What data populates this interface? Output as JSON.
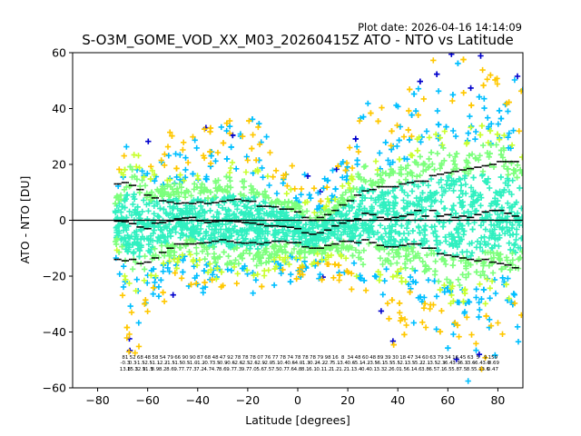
{
  "chart_data": {
    "type": "scatter",
    "title": "S-O3M_GOME_VOD_XX_M03_20260415Z ATO - NTO vs Latitude",
    "subtitle": "Plot date: 2026-04-16 14:14:09",
    "xlabel": "Latitude [degrees]",
    "ylabel": "ATO - NTO [DU]",
    "xlim": [
      -90,
      90
    ],
    "ylim": [
      -60,
      60
    ],
    "xticks": [
      -80,
      -60,
      -40,
      -20,
      0,
      20,
      40,
      60,
      80
    ],
    "yticks": [
      -60,
      -40,
      -20,
      0,
      20,
      40,
      60
    ],
    "xtick_labels": [
      "−80",
      "−60",
      "−40",
      "−20",
      "0",
      "20",
      "40",
      "60",
      "80"
    ],
    "ytick_labels": [
      "−60",
      "−40",
      "−20",
      "0",
      "20",
      "40",
      "60"
    ],
    "grid": false,
    "marker": "+",
    "density_colors": [
      "#0000cc",
      "#00bfff",
      "#30f0c0",
      "#7cff7c",
      "#c8ff30",
      "#ffc800"
    ],
    "zero_line": 0,
    "bins": [
      {
        "lat": -72,
        "mean": -0.3,
        "upper": 13.0,
        "lower": -14.0
      },
      {
        "lat": -69,
        "mean": -0.5,
        "upper": 13.5,
        "lower": -14.5
      },
      {
        "lat": -66,
        "mean": -1.2,
        "upper": 12.5,
        "lower": -14.0
      },
      {
        "lat": -63,
        "mean": -2.4,
        "upper": 11.0,
        "lower": -15.5
      },
      {
        "lat": -60,
        "mean": -3.0,
        "upper": 9.0,
        "lower": -15.0
      },
      {
        "lat": -57,
        "mean": -1.0,
        "upper": 8.0,
        "lower": -13.5
      },
      {
        "lat": -54,
        "mean": -0.8,
        "upper": 7.0,
        "lower": -11.5
      },
      {
        "lat": -51,
        "mean": -0.3,
        "upper": 6.5,
        "lower": -10.0
      },
      {
        "lat": -48,
        "mean": 0.5,
        "upper": 6.0,
        "lower": -8.5
      },
      {
        "lat": -45,
        "mean": 0.8,
        "upper": 6.2,
        "lower": -8.5
      },
      {
        "lat": -42,
        "mean": 1.0,
        "upper": 6.0,
        "lower": -8.5
      },
      {
        "lat": -39,
        "mean": -0.2,
        "upper": 6.5,
        "lower": -8.2
      },
      {
        "lat": -36,
        "mean": -0.8,
        "upper": 6.0,
        "lower": -8.0
      },
      {
        "lat": -33,
        "mean": -0.5,
        "upper": 6.3,
        "lower": -7.5
      },
      {
        "lat": -30,
        "mean": -0.2,
        "upper": 6.8,
        "lower": -7.0
      },
      {
        "lat": -27,
        "mean": -0.3,
        "upper": 7.2,
        "lower": -7.5
      },
      {
        "lat": -24,
        "mean": -0.5,
        "upper": 7.5,
        "lower": -8.0
      },
      {
        "lat": -21,
        "mean": -0.8,
        "upper": 7.0,
        "lower": -8.2
      },
      {
        "lat": -18,
        "mean": -1.0,
        "upper": 6.8,
        "lower": -8.0
      },
      {
        "lat": -15,
        "mean": -1.5,
        "upper": 5.0,
        "lower": -8.5
      },
      {
        "lat": -12,
        "mean": -2.0,
        "upper": 5.0,
        "lower": -8.0
      },
      {
        "lat": -9,
        "mean": -2.0,
        "upper": 4.8,
        "lower": -7.5
      },
      {
        "lat": -6,
        "mean": -2.2,
        "upper": 4.0,
        "lower": -7.5
      },
      {
        "lat": -3,
        "mean": -2.5,
        "upper": 4.0,
        "lower": -8.0
      },
      {
        "lat": 0,
        "mean": -3.0,
        "upper": 3.0,
        "lower": -8.0
      },
      {
        "lat": 3,
        "mean": -4.5,
        "upper": 1.0,
        "lower": -9.5
      },
      {
        "lat": 6,
        "mean": -5.0,
        "upper": 0.0,
        "lower": -10.0
      },
      {
        "lat": 9,
        "mean": -4.5,
        "upper": 1.0,
        "lower": -10.0
      },
      {
        "lat": 12,
        "mean": -3.5,
        "upper": 2.0,
        "lower": -9.0
      },
      {
        "lat": 15,
        "mean": -2.0,
        "upper": 3.5,
        "lower": -8.5
      },
      {
        "lat": 18,
        "mean": -1.0,
        "upper": 5.5,
        "lower": -7.5
      },
      {
        "lat": 21,
        "mean": -0.2,
        "upper": 7.0,
        "lower": -7.5
      },
      {
        "lat": 24,
        "mean": 0.5,
        "upper": 9.0,
        "lower": -8.0
      },
      {
        "lat": 27,
        "mean": 2.5,
        "upper": 10.5,
        "lower": -7.0
      },
      {
        "lat": 30,
        "mean": 2.0,
        "upper": 11.0,
        "lower": -8.0
      },
      {
        "lat": 33,
        "mean": 1.0,
        "upper": 12.0,
        "lower": -9.0
      },
      {
        "lat": 36,
        "mean": 0.5,
        "upper": 12.0,
        "lower": -9.5
      },
      {
        "lat": 39,
        "mean": 1.0,
        "upper": 12.0,
        "lower": -9.5
      },
      {
        "lat": 42,
        "mean": 1.5,
        "upper": 13.0,
        "lower": -9.0
      },
      {
        "lat": 45,
        "mean": 2.0,
        "upper": 13.5,
        "lower": -8.5
      },
      {
        "lat": 48,
        "mean": 3.5,
        "upper": 14.0,
        "lower": -8.5
      },
      {
        "lat": 51,
        "mean": 1.5,
        "upper": 14.0,
        "lower": -10.0
      },
      {
        "lat": 54,
        "mean": 3.5,
        "upper": 16.0,
        "lower": -10.0
      },
      {
        "lat": 57,
        "mean": 1.5,
        "upper": 16.5,
        "lower": -12.0
      },
      {
        "lat": 60,
        "mean": 2.0,
        "upper": 17.0,
        "lower": -12.5
      },
      {
        "lat": 63,
        "mean": 1.0,
        "upper": 17.5,
        "lower": -13.0
      },
      {
        "lat": 66,
        "mean": 1.5,
        "upper": 18.0,
        "lower": -13.5
      },
      {
        "lat": 69,
        "mean": 1.0,
        "upper": 18.5,
        "lower": -14.0
      },
      {
        "lat": 72,
        "mean": 2.0,
        "upper": 19.0,
        "lower": -14.5
      },
      {
        "lat": 75,
        "mean": 3.0,
        "upper": 19.5,
        "lower": -14.0
      },
      {
        "lat": 78,
        "mean": 3.5,
        "upper": 20.0,
        "lower": -15.0
      },
      {
        "lat": 81,
        "mean": 3.5,
        "upper": 21.0,
        "lower": -15.5
      },
      {
        "lat": 84,
        "mean": 2.5,
        "upper": 21.0,
        "lower": -16.0
      },
      {
        "lat": 87,
        "mean": 1.5,
        "upper": 21.0,
        "lower": -17.0
      }
    ],
    "envelope": [
      {
        "lat": -72,
        "hi": 18,
        "lo": -25
      },
      {
        "lat": -67,
        "hi": 32,
        "lo": -50
      },
      {
        "lat": -62,
        "hi": 28,
        "lo": -45
      },
      {
        "lat": -57,
        "hi": 30,
        "lo": -35
      },
      {
        "lat": -52,
        "hi": 32,
        "lo": -30
      },
      {
        "lat": -46,
        "hi": 30,
        "lo": -25
      },
      {
        "lat": -40,
        "hi": 32,
        "lo": -28
      },
      {
        "lat": -34,
        "hi": 35,
        "lo": -25
      },
      {
        "lat": -28,
        "hi": 38,
        "lo": -27
      },
      {
        "lat": -22,
        "hi": 36,
        "lo": -24
      },
      {
        "lat": -16,
        "hi": 38,
        "lo": -30
      },
      {
        "lat": -10,
        "hi": 26,
        "lo": -27
      },
      {
        "lat": -4,
        "hi": 22,
        "lo": -22
      },
      {
        "lat": 2,
        "hi": 18,
        "lo": -24
      },
      {
        "lat": 8,
        "hi": 12,
        "lo": -22
      },
      {
        "lat": 14,
        "hi": 20,
        "lo": -22
      },
      {
        "lat": 20,
        "hi": 25,
        "lo": -28
      },
      {
        "lat": 26,
        "hi": 45,
        "lo": -30
      },
      {
        "lat": 32,
        "hi": 40,
        "lo": -32
      },
      {
        "lat": 38,
        "hi": 42,
        "lo": -45
      },
      {
        "lat": 44,
        "hi": 48,
        "lo": -40
      },
      {
        "lat": 50,
        "hi": 55,
        "lo": -38
      },
      {
        "lat": 56,
        "hi": 60,
        "lo": -42
      },
      {
        "lat": 62,
        "hi": 60,
        "lo": -50
      },
      {
        "lat": 68,
        "hi": 60,
        "lo": -58
      },
      {
        "lat": 74,
        "hi": 60,
        "lo": -55
      },
      {
        "lat": 80,
        "hi": 60,
        "lo": -50
      },
      {
        "lat": 86,
        "hi": 55,
        "lo": -48
      },
      {
        "lat": 90,
        "hi": 50,
        "lo": -45
      }
    ],
    "bin_stats": [
      {
        "lat": -69,
        "row1": "81",
        "row2": "-0.3",
        "row3": "13.8"
      },
      {
        "lat": -66,
        "row1": "52",
        "row2": "0.3",
        "row3": "15.3"
      },
      {
        "lat": -63,
        "row1": "68",
        "row2": "-1.5",
        "row3": "12.9"
      },
      {
        "lat": -60,
        "row1": "48",
        "row2": "-2.5",
        "row3": "11.5"
      },
      {
        "lat": -57,
        "row1": "58",
        "row2": "-1.1",
        "row3": "8.9"
      },
      {
        "lat": -54,
        "row1": "54",
        "row2": "-2.2",
        "row3": "8.2"
      },
      {
        "lat": -51,
        "row1": "79",
        "row2": "-1.5",
        "row3": "8.6"
      },
      {
        "lat": -48,
        "row1": "66",
        "row2": "-1.5",
        "row3": "9.7"
      },
      {
        "lat": -45,
        "row1": "90",
        "row2": "-0.5",
        "row3": "7.7"
      },
      {
        "lat": -42,
        "row1": "90",
        "row2": "-1.0",
        "row3": "7.3"
      },
      {
        "lat": -39,
        "row1": "87",
        "row2": "-1.2",
        "row3": "7.2"
      },
      {
        "lat": -36,
        "row1": "68",
        "row2": "-0.7",
        "row3": "4.7"
      },
      {
        "lat": -33,
        "row1": "48",
        "row2": "-3.5",
        "row3": "4.7"
      },
      {
        "lat": -30,
        "row1": "47",
        "row2": "-0.9",
        "row3": "8.6"
      },
      {
        "lat": -27,
        "row1": "92",
        "row2": "-0.6",
        "row3": "9.7"
      },
      {
        "lat": -24,
        "row1": "78",
        "row2": "-2.6",
        "row3": "7.3"
      },
      {
        "lat": -21,
        "row1": "78",
        "row2": "-2.5",
        "row3": "9.7"
      },
      {
        "lat": -18,
        "row1": "78",
        "row2": "-2.6",
        "row3": "7.0"
      },
      {
        "lat": -15,
        "row1": "07",
        "row2": "-2.9",
        "row3": "5.6"
      },
      {
        "lat": -12,
        "row1": "76",
        "row2": "-2.0",
        "row3": "7.5"
      },
      {
        "lat": -9,
        "row1": "77",
        "row2": "-5.1",
        "row3": "7.5"
      },
      {
        "lat": -6,
        "row1": "78",
        "row2": "-0.4",
        "row3": "0.7"
      },
      {
        "lat": -3,
        "row1": "74",
        "row2": "-0.6",
        "row3": "7.6"
      },
      {
        "lat": 0,
        "row1": "78",
        "row2": "-4.0",
        "row3": "4.8"
      },
      {
        "lat": 3,
        "row1": "78",
        "row2": "-1.3",
        "row3": "8.1"
      },
      {
        "lat": 6,
        "row1": "78",
        "row2": "-0.2",
        "row3": "6.1"
      },
      {
        "lat": 9,
        "row1": "79",
        "row2": "-4.2",
        "row3": "0.1"
      },
      {
        "lat": 12,
        "row1": "98",
        "row2": "-2.7",
        "row3": "1.2"
      },
      {
        "lat": 15,
        "row1": "16",
        "row2": "-5.1",
        "row3": "1.2"
      },
      {
        "lat": 18,
        "row1": "8",
        "row2": "-3.4",
        "row3": "1.2"
      },
      {
        "lat": 21,
        "row1": "34",
        "row2": "-0.6",
        "row3": "1.1"
      },
      {
        "lat": 24,
        "row1": "48",
        "row2": "-5.1",
        "row3": "3.4"
      },
      {
        "lat": 27,
        "row1": "60",
        "row2": "-4.2",
        "row3": "0.4"
      },
      {
        "lat": 30,
        "row1": "48",
        "row2": "-3.5",
        "row3": "0.1"
      },
      {
        "lat": 33,
        "row1": "89",
        "row2": "-6.1",
        "row3": "3.3"
      },
      {
        "lat": 36,
        "row1": "39",
        "row2": "-5.5",
        "row3": "2.2"
      },
      {
        "lat": 39,
        "row1": "30",
        "row2": "-5.5",
        "row3": "6.0"
      },
      {
        "lat": 42,
        "row1": "18",
        "row2": "-2.1",
        "row3": "1.5"
      },
      {
        "lat": 45,
        "row1": "47",
        "row2": "-3.5",
        "row3": "6.1"
      },
      {
        "lat": 48,
        "row1": "34",
        "row2": "-5.2",
        "row3": "4.6"
      },
      {
        "lat": 51,
        "row1": "60",
        "row2": "-2.1",
        "row3": "3.8"
      },
      {
        "lat": 54,
        "row1": "63",
        "row2": "-3.5",
        "row3": "6.5"
      },
      {
        "lat": 57,
        "row1": "79",
        "row2": "-2.3",
        "row3": "7.1"
      },
      {
        "lat": 60,
        "row1": "34",
        "row2": "-6.4",
        "row3": "6.5"
      },
      {
        "lat": 63,
        "row1": "16",
        "row2": "-3.3",
        "row3": "5.8"
      },
      {
        "lat": 66,
        "row1": "45",
        "row2": "-6.3",
        "row3": "7.5"
      },
      {
        "lat": 69,
        "row1": "63",
        "row2": "-3.6",
        "row3": "8.5"
      },
      {
        "lat": 72,
        "row1": "5",
        "row2": "-6.4",
        "row3": "5.1"
      },
      {
        "lat": 75,
        "row1": "9",
        "row2": "-3.9",
        "row3": "3.6"
      },
      {
        "lat": 78,
        "row1": "159",
        "row2": "-0.69",
        "row3": "0.47"
      }
    ]
  }
}
